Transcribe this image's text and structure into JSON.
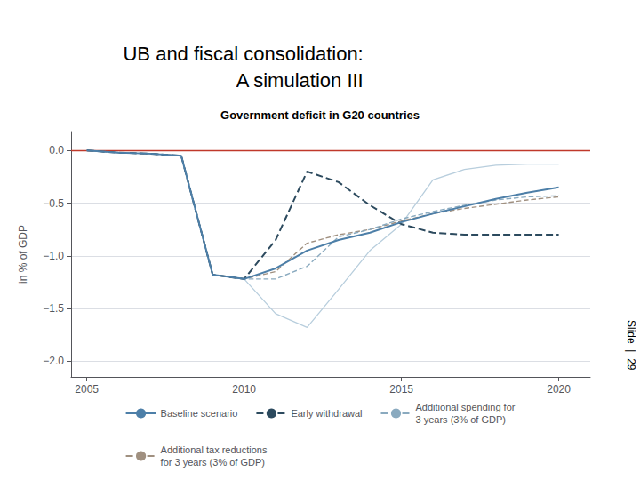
{
  "chart_data": {
    "type": "line",
    "title": "UB and fiscal consolidation:\nA simulation III",
    "subtitle": "Government deficit in G20 countries",
    "annotations": [
      "Slide  |  29"
    ],
    "ylabel": "in % of GDP",
    "xlim": [
      2004.5,
      2021
    ],
    "xticks": [
      2005,
      2010,
      2015,
      2020
    ],
    "ylim": [
      -2.15,
      0.18
    ],
    "yticks": [
      {
        "value": 0.0,
        "label": "0.0"
      },
      {
        "value": -0.5,
        "label": "−0.5"
      },
      {
        "value": -1.0,
        "label": "−1.0"
      },
      {
        "value": -1.5,
        "label": "−1.5"
      },
      {
        "value": -2.0,
        "label": "−2.0"
      }
    ],
    "grid": true,
    "legend": "bottom",
    "reference_line": {
      "y": 0.0,
      "color": "#c0392b"
    },
    "series": [
      {
        "name": "Baseline scenario",
        "color": "#4d7fa8",
        "line_style": "solid",
        "x": [
          2005,
          2006,
          2007,
          2008,
          2009,
          2010,
          2011,
          2012,
          2013,
          2014,
          2015,
          2016,
          2017,
          2018,
          2019,
          2020
        ],
        "values": [
          0.0,
          -0.02,
          -0.03,
          -0.05,
          -1.18,
          -1.22,
          -1.12,
          -0.95,
          -0.85,
          -0.78,
          -0.68,
          -0.6,
          -0.53,
          -0.46,
          -0.4,
          -0.35
        ]
      },
      {
        "name": "Early withdrawal",
        "color": "#2c4a5e",
        "line_style": "dashed",
        "x": [
          2005,
          2006,
          2007,
          2008,
          2009,
          2010,
          2011,
          2012,
          2013,
          2014,
          2015,
          2016,
          2017,
          2018,
          2019,
          2020
        ],
        "values": [
          0.0,
          -0.02,
          -0.03,
          -0.05,
          -1.18,
          -1.22,
          -0.85,
          -0.2,
          -0.3,
          -0.52,
          -0.7,
          -0.78,
          -0.8,
          -0.8,
          -0.8,
          -0.8
        ]
      },
      {
        "name": "Additional spending for\n3 years (3% of GDP)",
        "color": "#8aaabf",
        "line_style": "dashed",
        "x": [
          2005,
          2006,
          2007,
          2008,
          2009,
          2010,
          2011,
          2012,
          2013,
          2014,
          2015,
          2016,
          2017,
          2018,
          2019,
          2020
        ],
        "values": [
          0.0,
          -0.02,
          -0.03,
          -0.05,
          -1.18,
          -1.22,
          -1.22,
          -1.1,
          -0.82,
          -0.75,
          -0.65,
          -0.58,
          -0.52,
          -0.47,
          -0.44,
          -0.43
        ]
      },
      {
        "name": "Additional tax reductions\nfor 3 years (3% of GDP)",
        "color": "#a09080",
        "line_style": "dashed",
        "x": [
          2005,
          2006,
          2007,
          2008,
          2009,
          2010,
          2011,
          2012,
          2013,
          2014,
          2015,
          2016,
          2017,
          2018,
          2019,
          2020
        ],
        "values": [
          0.0,
          -0.02,
          -0.03,
          -0.05,
          -1.18,
          -1.22,
          -1.15,
          -0.88,
          -0.8,
          -0.75,
          -0.67,
          -0.6,
          -0.55,
          -0.51,
          -0.47,
          -0.44
        ]
      },
      {
        "color": "#b8cedd",
        "line_style": "solid",
        "x": [
          2008,
          2009,
          2010,
          2011,
          2012,
          2013,
          2014,
          2015
        ],
        "values": [
          -0.05,
          -1.18,
          -1.22,
          -1.55,
          -1.68,
          -1.32,
          -0.95,
          -0.7
        ]
      },
      {
        "color": "#b8cedd",
        "line_style": "solid",
        "x": [
          2015,
          2016,
          2017,
          2018,
          2019,
          2020
        ],
        "values": [
          -0.7,
          -0.28,
          -0.18,
          -0.14,
          -0.13,
          -0.13
        ]
      }
    ]
  }
}
